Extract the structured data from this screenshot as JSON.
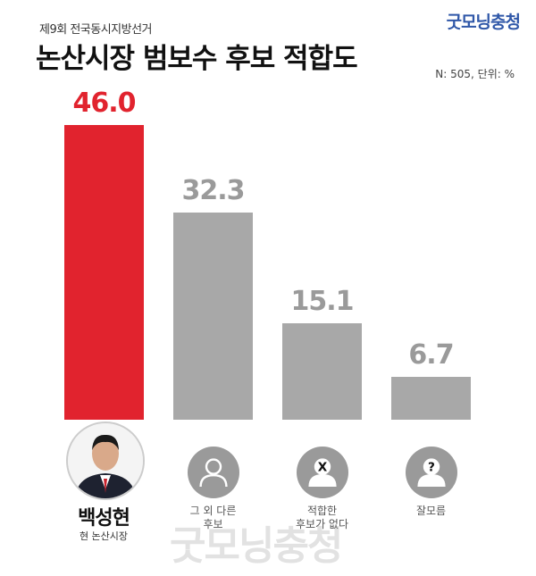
{
  "header": {
    "subtitle": "제9회 전국동시지방선거",
    "title": "논산시장 범보수 후보 적합도",
    "brand": "굿모닝충청",
    "meta": "N: 505, 단위: %"
  },
  "colors": {
    "highlight": "#e1232e",
    "neutral": "#a8a8a8",
    "brand": "#2f57a8"
  },
  "chart_data": {
    "type": "bar",
    "categories": [
      "백성현",
      "그 외 다른 후보",
      "적합한 후보가 없다",
      "잘모름"
    ],
    "values": [
      46.0,
      32.3,
      15.1,
      6.7
    ],
    "value_labels": [
      "46.0",
      "32.3",
      "15.1",
      "6.7"
    ],
    "ylim": [
      0,
      50
    ],
    "highlight_index": 0,
    "candidate": {
      "name": "백성현",
      "role": "현 논산시장"
    },
    "category_labels": [
      [
        "그 외 다른",
        "후보"
      ],
      [
        "적합한",
        "후보가 없다"
      ],
      [
        "잘모름"
      ]
    ],
    "icons": [
      "person-photo",
      "person-icon",
      "x-person-icon",
      "question-person-icon"
    ],
    "icon_marks": [
      "",
      "",
      "X",
      "?"
    ]
  },
  "watermark": "굿모닝충청"
}
